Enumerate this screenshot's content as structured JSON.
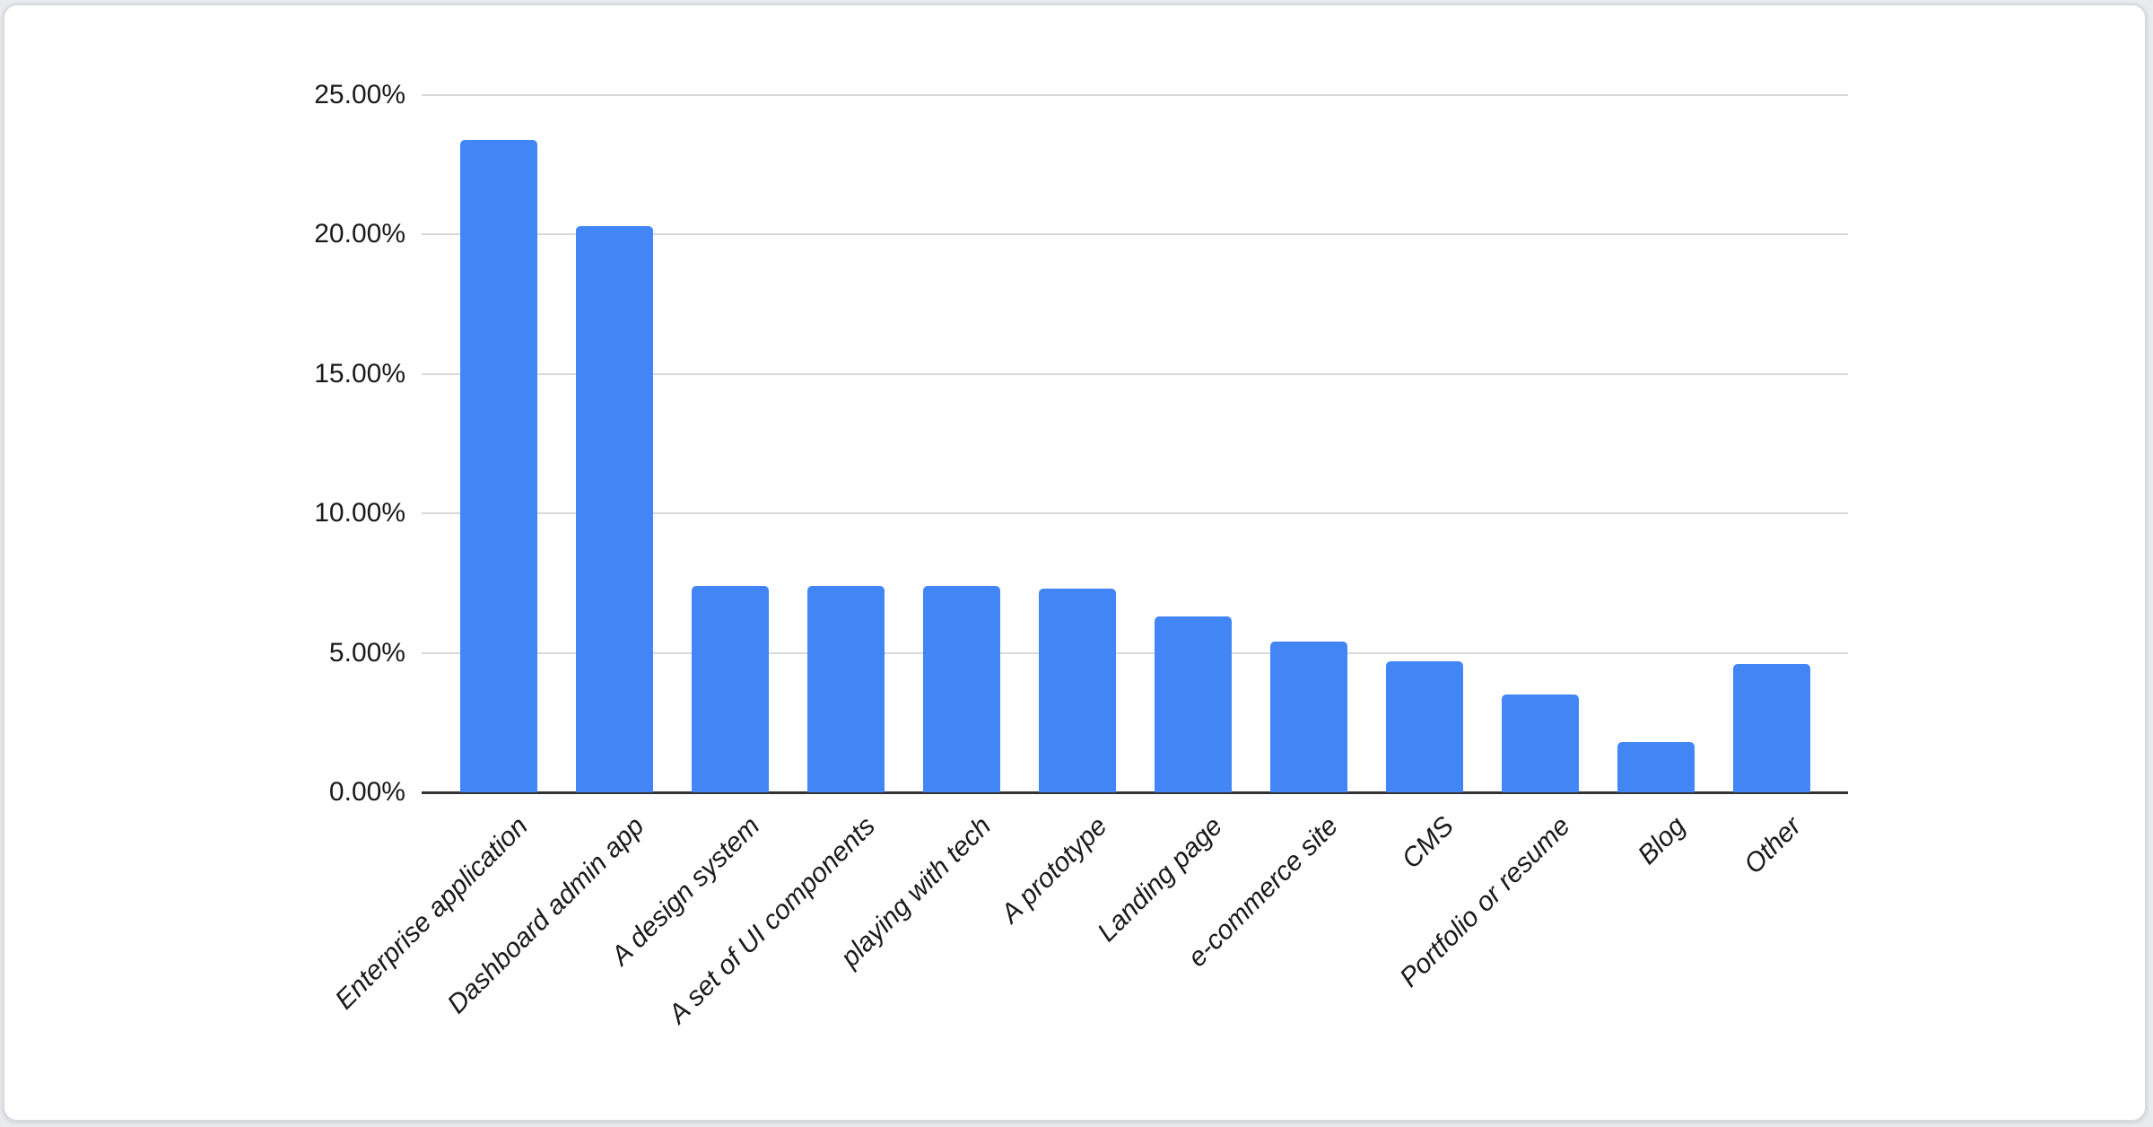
{
  "card": {
    "background": "#ffffff",
    "border_color": "#d8dade"
  },
  "chart_data": {
    "type": "bar",
    "title": "",
    "categories": [
      "Enterprise application",
      "Dashboard admin app",
      "A design system",
      "A set of UI components",
      "playing with tech",
      "A prototype",
      "Landing page",
      "e-commerce site",
      "CMS",
      "Portfolio or resume",
      "Blog",
      "Other"
    ],
    "values": [
      23.4,
      20.3,
      7.4,
      7.4,
      7.4,
      7.3,
      6.3,
      5.4,
      4.7,
      3.5,
      1.8,
      4.6
    ],
    "value_unit": "percent",
    "xlabel": "",
    "ylabel": "",
    "ylim": [
      0,
      25
    ],
    "y_ticks": [
      0,
      5,
      10,
      15,
      20,
      25
    ],
    "y_tick_labels": [
      "0.00%",
      "5.00%",
      "10.00%",
      "15.00%",
      "20.00%",
      "25.00%"
    ],
    "grid": true,
    "legend": "none",
    "bar_color": "#4285f4",
    "gridline_color": "#d9d9d9",
    "axis_line_color": "#333333",
    "label_color": "#1a1a1a"
  }
}
